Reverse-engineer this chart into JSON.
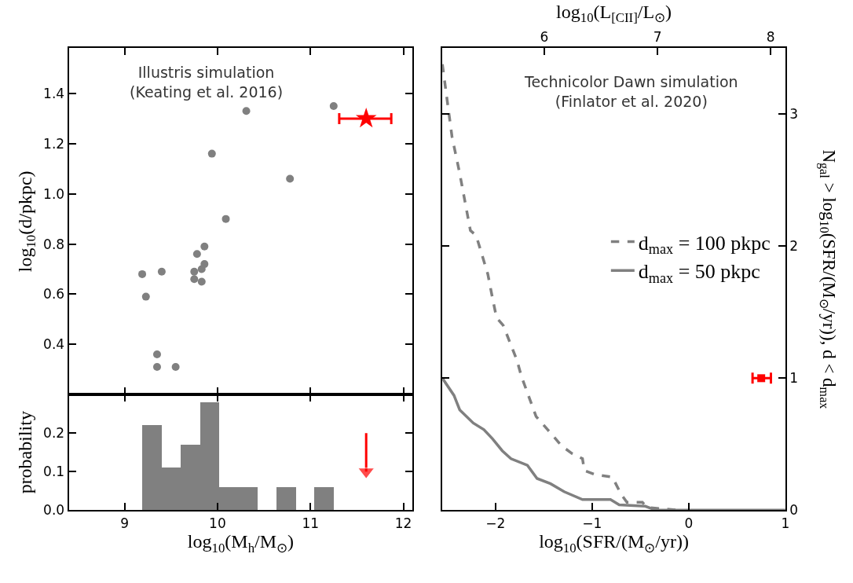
{
  "chart_data": [
    {
      "type": "scatter",
      "ylabel": "log$_{10}$(d/pkpc)",
      "annotations": [
        "Illustris simulation\n(Keating et al. 2016)"
      ],
      "xlim": [
        8.4,
        12.1
      ],
      "ylim": [
        0.2,
        1.58
      ],
      "xticks": [
        9,
        10,
        11,
        12
      ],
      "yticks": [
        0.4,
        0.6,
        0.8,
        {
          "value": 1,
          "label": "1.0"
        },
        1.2,
        1.4
      ],
      "tick_labels": "y",
      "marker": "circle",
      "series": [
        {
          "color": "#808080",
          "x": [
            11.25,
            10.31,
            9.94,
            10.78,
            10.09,
            9.86,
            9.78,
            9.86,
            9.83,
            9.75,
            9.4,
            9.19,
            9.75,
            9.83,
            9.23,
            9.35,
            9.35,
            9.55
          ],
          "values": [
            1.35,
            1.33,
            1.16,
            1.06,
            0.9,
            0.79,
            0.76,
            0.72,
            0.7,
            0.69,
            0.69,
            0.68,
            0.66,
            0.65,
            0.59,
            0.36,
            0.31,
            0.31
          ]
        },
        {
          "color": "#ff0000",
          "marker": "star",
          "x": [
            11.6
          ],
          "values": [
            1.3
          ],
          "xerrors": [
            [
              11.31,
              11.87
            ]
          ]
        }
      ]
    },
    {
      "type": "histogram",
      "xlabel": "log$_{10}$(M$_{h}$/M$_{⊙}$)",
      "ylabel": "probability",
      "xlim": [
        8.4,
        12.1
      ],
      "ylim": [
        0,
        0.3
      ],
      "xticks": [
        9,
        10,
        11,
        12
      ],
      "yticks": [
        {
          "value": 0,
          "label": "0.0"
        },
        0.1,
        0.2
      ],
      "color": "#808080",
      "bins": [
        9.19,
        9.4,
        9.6,
        9.81,
        10.01,
        10.22,
        10.43,
        10.63,
        10.84,
        11.04,
        11.25
      ],
      "values": [
        0.22,
        0.11,
        0.17,
        0.28,
        0.06,
        0.06,
        0,
        0.06,
        0,
        0.06
      ],
      "series": [
        {
          "type": "line",
          "color": "#ff0000",
          "marker": "triangle",
          "line_style": "solid",
          "x": [
            11.6,
            11.6
          ],
          "values": [
            0.2,
            0.1
          ]
        }
      ]
    },
    {
      "type": "line",
      "xlabel": "log$_{10}$(SFR/(M$_{⊙}$/yr))",
      "x2label": "log$_{10}$(L$_{[CII]}$/L$_{⊙}$)",
      "ylabel": "N$_{gal}$ > log$_{10}$(SFR/(M$_{⊙}$/yr)), d < d$_{max}$",
      "annotations": [
        "Technicolor Dawn simulation\n(Finlator et al. 2020)"
      ],
      "xlim": [
        -2.55,
        1
      ],
      "xticks": [
        {
          "value": -2,
          "label": "−2"
        },
        {
          "value": -1,
          "label": "−1"
        },
        0,
        1
      ],
      "x2lim": [
        5.1,
        8.13
      ],
      "x2ticks": [
        6,
        7,
        8
      ],
      "ylim": [
        0,
        3.5
      ],
      "yticks": [
        0,
        1,
        2,
        3
      ],
      "legend": "right",
      "series": [
        {
          "name": "d$_{max}$ = 100 pkpc",
          "color": "#808080",
          "line_style": "dashed",
          "x": [
            -2.55,
            -2.45,
            -2.37,
            -2.26,
            -2.2,
            -2.08,
            -2.04,
            -1.99,
            -1.92,
            -1.78,
            -1.73,
            -1.58,
            -1.46,
            -1.32,
            -1.21,
            -1.1,
            -1.08,
            -0.97,
            -0.79,
            -0.7,
            -0.64,
            -0.48,
            -0.43,
            -0.1
          ],
          "values": [
            3.38,
            2.83,
            2.55,
            2.12,
            2.08,
            1.79,
            1.64,
            1.46,
            1.4,
            1.14,
            1.01,
            0.71,
            0.61,
            0.49,
            0.43,
            0.39,
            0.3,
            0.27,
            0.25,
            0.12,
            0.06,
            0.06,
            0.02,
            0
          ]
        },
        {
          "name": "d$_{max}$ = 50 pkpc",
          "color": "#808080",
          "line_style": "solid",
          "x": [
            -2.55,
            -2.43,
            -2.37,
            -2.23,
            -2.12,
            -2.03,
            -1.93,
            -1.84,
            -1.67,
            -1.57,
            -1.43,
            -1.29,
            -1.1,
            -0.81,
            -0.72,
            -0.45,
            -0.34,
            1
          ],
          "values": [
            1,
            0.87,
            0.76,
            0.66,
            0.61,
            0.54,
            0.45,
            0.39,
            0.34,
            0.24,
            0.2,
            0.14,
            0.08,
            0.08,
            0.04,
            0.03,
            0,
            0
          ]
        },
        {
          "type": "scatter",
          "color": "#ff0000",
          "marker": "square",
          "x": [
            0.75
          ],
          "values": [
            1
          ],
          "xerrors": [
            [
              0.66,
              0.85
            ]
          ]
        }
      ]
    }
  ]
}
